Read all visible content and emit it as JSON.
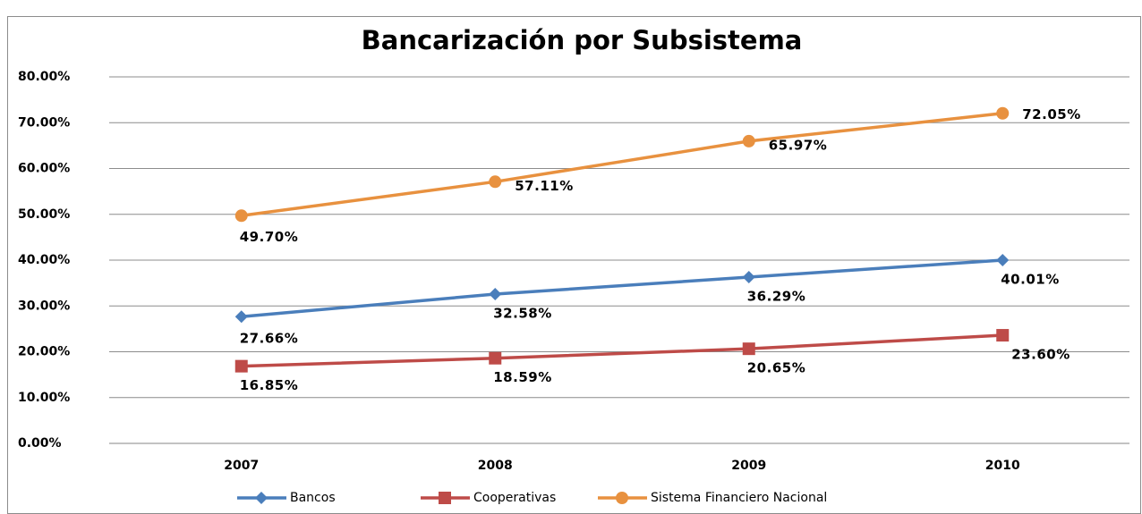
{
  "chart_data": {
    "type": "line",
    "title": "Bancarización por Subsistema",
    "categories": [
      "2007",
      "2008",
      "2009",
      "2010"
    ],
    "series": [
      {
        "name": "Bancos",
        "color": "#4a7ebb",
        "marker": "diamond",
        "values": [
          27.66,
          32.58,
          36.29,
          40.01
        ],
        "value_labels": [
          "27.66%",
          "32.58%",
          "36.29%",
          "40.01%"
        ]
      },
      {
        "name": "Cooperativas",
        "color": "#be4b48",
        "marker": "square",
        "values": [
          16.85,
          18.59,
          20.65,
          23.6
        ],
        "value_labels": [
          "16.85%",
          "18.59%",
          "20.65%",
          "23.60%"
        ]
      },
      {
        "name": "Sistema Financiero Nacional",
        "color": "#e8913f",
        "marker": "circle",
        "values": [
          49.7,
          57.11,
          65.97,
          72.05
        ],
        "value_labels": [
          "49.70%",
          "57.11%",
          "65.97%",
          "72.05%"
        ]
      }
    ],
    "ylim": [
      0,
      80
    ],
    "yticks": [
      {
        "value": 0,
        "label": "0.00%"
      },
      {
        "value": 10,
        "label": "10.00%"
      },
      {
        "value": 20,
        "label": "20.00%"
      },
      {
        "value": 30,
        "label": "30.00%"
      },
      {
        "value": 40,
        "label": "40.00%"
      },
      {
        "value": 50,
        "label": "50.00%"
      },
      {
        "value": 60,
        "label": "60.00%"
      },
      {
        "value": 70,
        "label": "70.00%"
      },
      {
        "value": 80,
        "label": "80.00%"
      }
    ],
    "grid": true,
    "legend": "bottom"
  }
}
